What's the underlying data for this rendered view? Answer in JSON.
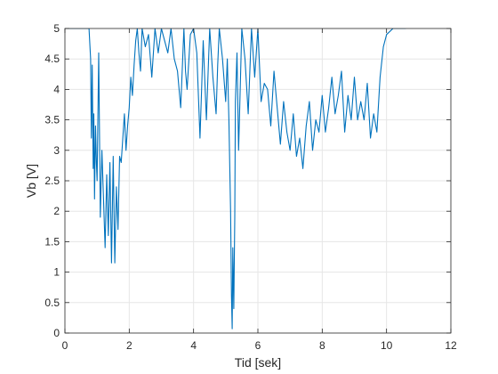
{
  "figure": {
    "background": "#ffffff"
  },
  "chart_data": {
    "type": "line",
    "title": "",
    "xlabel": "Tid [sek]",
    "ylabel": "Vb [V]",
    "xlim": [
      0,
      12
    ],
    "ylim": [
      0,
      5
    ],
    "xticks": [
      0,
      2,
      4,
      6,
      8,
      10,
      12
    ],
    "yticks": [
      0,
      0.5,
      1,
      1.5,
      2,
      2.5,
      3,
      3.5,
      4,
      4.5,
      5
    ],
    "xtick_labels": [
      "0",
      "2",
      "4",
      "6",
      "8",
      "10",
      "12"
    ],
    "ytick_labels": [
      "0",
      "0.5",
      "1",
      "1.5",
      "2",
      "2.5",
      "3",
      "3.5",
      "4",
      "4.5",
      "5"
    ],
    "grid": true,
    "box": true,
    "colors": {
      "series": "#0072bd",
      "grid": "#e6e6e6",
      "axis": "#262626"
    },
    "series": [
      {
        "name": "",
        "x": [
          0.0,
          0.75,
          0.8,
          0.82,
          0.85,
          0.88,
          0.9,
          0.92,
          0.95,
          0.98,
          1.0,
          1.05,
          1.1,
          1.15,
          1.2,
          1.25,
          1.3,
          1.35,
          1.4,
          1.45,
          1.5,
          1.55,
          1.6,
          1.65,
          1.7,
          1.75,
          1.8,
          1.85,
          1.9,
          1.95,
          2.0,
          2.05,
          2.1,
          2.15,
          2.2,
          2.25,
          2.3,
          2.35,
          2.4,
          2.5,
          2.6,
          2.7,
          2.8,
          2.9,
          3.0,
          3.1,
          3.2,
          3.3,
          3.4,
          3.5,
          3.6,
          3.7,
          3.75,
          3.8,
          3.9,
          4.0,
          4.1,
          4.2,
          4.3,
          4.4,
          4.5,
          4.6,
          4.7,
          4.75,
          4.8,
          4.9,
          5.0,
          5.05,
          5.1,
          5.15,
          5.18,
          5.2,
          5.22,
          5.25,
          5.28,
          5.3,
          5.35,
          5.4,
          5.5,
          5.6,
          5.7,
          5.8,
          5.9,
          6.0,
          6.1,
          6.2,
          6.3,
          6.4,
          6.5,
          6.6,
          6.7,
          6.8,
          6.9,
          7.0,
          7.1,
          7.2,
          7.3,
          7.4,
          7.5,
          7.6,
          7.7,
          7.8,
          7.9,
          8.0,
          8.1,
          8.2,
          8.3,
          8.4,
          8.5,
          8.6,
          8.7,
          8.8,
          8.9,
          9.0,
          9.1,
          9.2,
          9.3,
          9.4,
          9.5,
          9.6,
          9.7,
          9.8,
          9.9,
          10.0,
          10.2,
          10.6
        ],
        "y": [
          5.0,
          5.0,
          4.5,
          3.2,
          4.4,
          2.7,
          3.6,
          2.2,
          3.4,
          2.8,
          2.5,
          4.6,
          1.9,
          3.0,
          2.2,
          1.4,
          2.6,
          1.6,
          2.8,
          1.15,
          2.9,
          1.15,
          2.4,
          1.7,
          2.9,
          2.8,
          3.2,
          3.6,
          3.0,
          3.4,
          3.7,
          4.2,
          3.9,
          4.4,
          4.8,
          5.0,
          4.6,
          4.3,
          5.0,
          4.7,
          4.9,
          4.2,
          5.0,
          4.6,
          5.0,
          4.8,
          4.6,
          5.0,
          4.5,
          4.3,
          3.7,
          5.0,
          4.3,
          4.0,
          4.9,
          5.0,
          4.6,
          3.2,
          4.8,
          3.5,
          5.0,
          4.2,
          3.6,
          4.4,
          5.0,
          4.5,
          3.8,
          4.5,
          3.5,
          2.0,
          0.6,
          0.07,
          1.4,
          0.4,
          1.9,
          3.8,
          4.6,
          3.0,
          5.0,
          4.5,
          3.6,
          5.0,
          4.2,
          5.0,
          3.8,
          4.1,
          4.0,
          3.4,
          4.3,
          3.7,
          3.1,
          3.8,
          3.3,
          3.0,
          3.6,
          2.9,
          3.2,
          2.7,
          3.4,
          3.8,
          3.0,
          3.5,
          3.3,
          3.9,
          3.3,
          3.7,
          4.2,
          3.6,
          3.9,
          4.3,
          3.3,
          3.9,
          3.5,
          4.2,
          3.5,
          3.8,
          3.5,
          4.1,
          3.2,
          3.6,
          3.3,
          4.2,
          4.7,
          4.9,
          5.0,
          5.0
        ]
      }
    ]
  }
}
